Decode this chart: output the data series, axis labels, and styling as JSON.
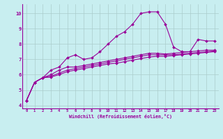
{
  "xlabel": "Windchill (Refroidissement éolien,°C)",
  "bg_color": "#c8eef0",
  "grid_color": "#aacccc",
  "line_color": "#990099",
  "x_ticks": [
    0,
    1,
    2,
    3,
    4,
    5,
    6,
    7,
    8,
    9,
    10,
    11,
    12,
    13,
    14,
    15,
    16,
    17,
    18,
    19,
    20,
    21,
    22,
    23
  ],
  "y_ticks": [
    4,
    5,
    6,
    7,
    8,
    9,
    10
  ],
  "ylim": [
    3.8,
    10.6
  ],
  "xlim": [
    -0.5,
    23.5
  ],
  "curve1": [
    4.3,
    5.5,
    5.8,
    6.3,
    6.5,
    7.1,
    7.3,
    7.0,
    7.1,
    7.5,
    8.0,
    8.5,
    8.8,
    9.3,
    10.0,
    10.1,
    10.1,
    9.3,
    7.8,
    7.5,
    7.5,
    8.3,
    8.2,
    8.2
  ],
  "curve2": [
    4.3,
    5.5,
    5.8,
    6.0,
    6.3,
    6.5,
    6.5,
    6.6,
    6.7,
    6.8,
    6.9,
    7.0,
    7.1,
    7.2,
    7.3,
    7.4,
    7.4,
    7.35,
    7.4,
    7.45,
    7.5,
    7.55,
    7.6,
    7.6
  ],
  "curve3": [
    4.3,
    5.5,
    5.8,
    5.9,
    6.1,
    6.3,
    6.4,
    6.5,
    6.6,
    6.7,
    6.8,
    6.9,
    7.0,
    7.1,
    7.2,
    7.3,
    7.3,
    7.3,
    7.3,
    7.35,
    7.4,
    7.45,
    7.5,
    7.55
  ],
  "curve4": [
    4.3,
    5.5,
    5.8,
    5.85,
    6.0,
    6.2,
    6.3,
    6.4,
    6.5,
    6.6,
    6.7,
    6.75,
    6.85,
    6.95,
    7.05,
    7.15,
    7.2,
    7.2,
    7.25,
    7.3,
    7.35,
    7.4,
    7.45,
    7.5
  ]
}
